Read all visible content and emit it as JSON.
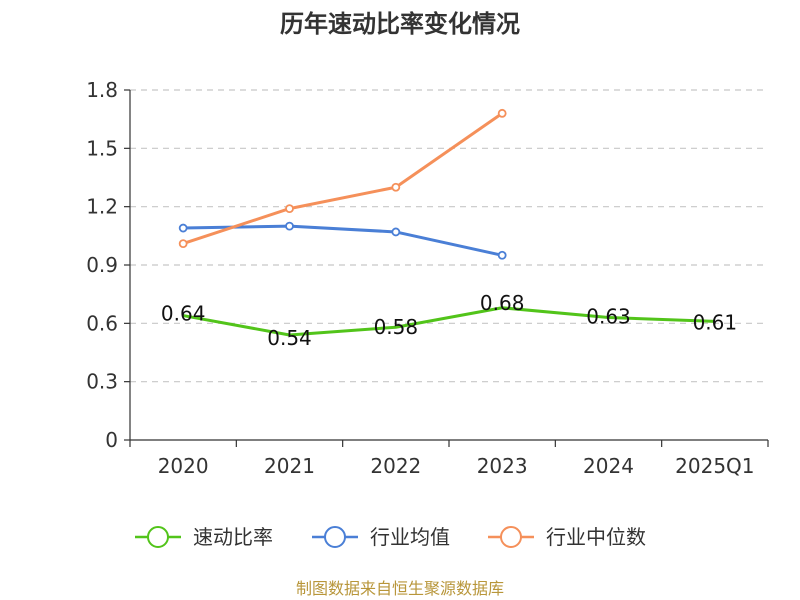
{
  "chart_data": {
    "type": "line",
    "title": "历年速动比率变化情况",
    "categories": [
      "2020",
      "2021",
      "2022",
      "2023",
      "2024",
      "2025Q1"
    ],
    "ylim": [
      0,
      1.8
    ],
    "yticks": [
      "0",
      "0.3",
      "0.6",
      "0.9",
      "1.2",
      "1.5",
      "1.8"
    ],
    "grid": true,
    "legend_position": "bottom",
    "series": [
      {
        "name": "速动比率",
        "color": "#52c41a",
        "values": [
          0.64,
          0.54,
          0.58,
          0.68,
          0.63,
          0.61
        ],
        "labels": [
          "0.64",
          "0.54",
          "0.58",
          "0.68",
          "0.63",
          "0.61"
        ],
        "show_markers": false
      },
      {
        "name": "行业均值",
        "color": "#4a7fd6",
        "values": [
          1.09,
          1.1,
          1.07,
          0.95,
          null,
          null
        ],
        "show_markers": true
      },
      {
        "name": "行业中位数",
        "color": "#f5905a",
        "values": [
          1.01,
          1.19,
          1.3,
          1.68,
          null,
          null
        ],
        "show_markers": true
      }
    ]
  },
  "source": "制图数据来自恒生聚源数据库"
}
